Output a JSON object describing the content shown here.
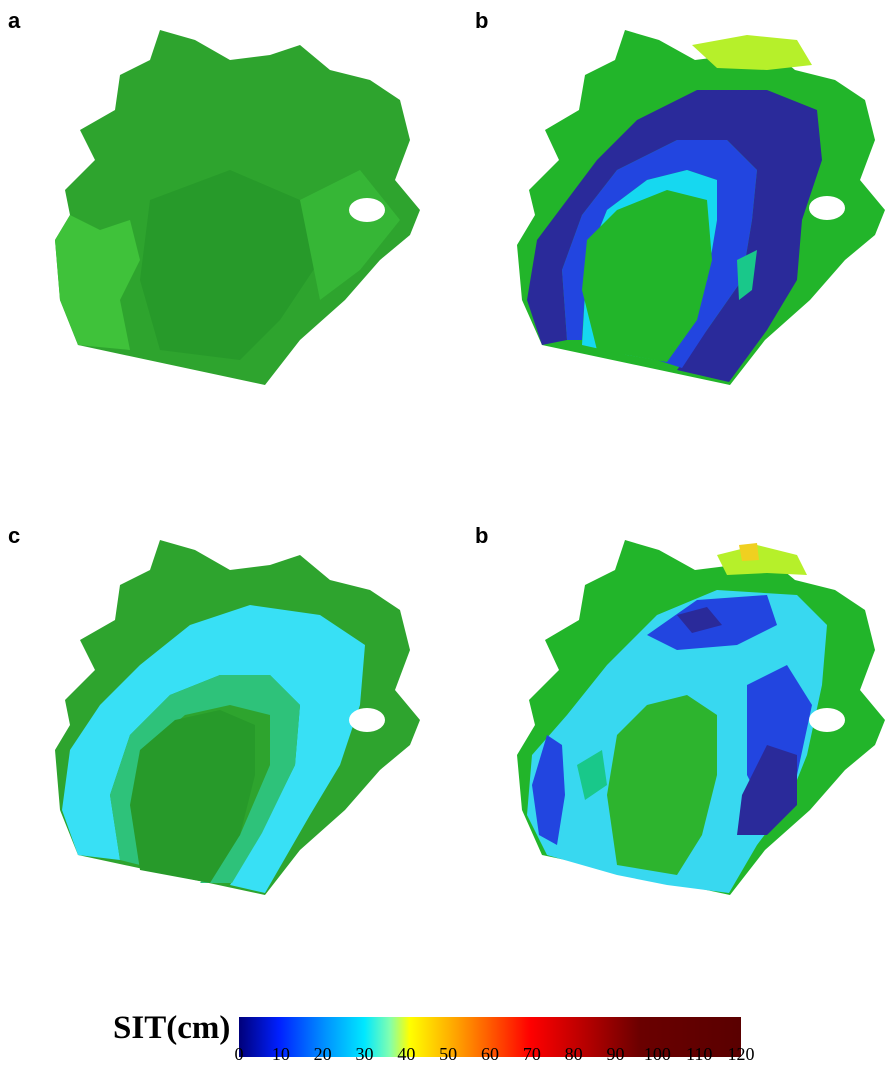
{
  "panels": [
    {
      "label": "a"
    },
    {
      "label": "b"
    },
    {
      "label": "c"
    },
    {
      "label": "b"
    }
  ],
  "colorbar": {
    "title": "SIT(cm)",
    "ticks": [
      "0",
      "10",
      "20",
      "30",
      "40",
      "50",
      "60",
      "70",
      "80",
      "90",
      "100",
      "110",
      "120"
    ],
    "range": [
      0,
      120
    ],
    "colors": [
      "#00007a",
      "#0020ff",
      "#0090ff",
      "#00e8ff",
      "#80ffb0",
      "#ffff00",
      "#ffb000",
      "#ff5a00",
      "#ff0000",
      "#b00000",
      "#6a0000",
      "#5a0000"
    ]
  },
  "palette": {
    "green_dark": "#2e9f2e",
    "green_mid": "#22b52a",
    "green_light": "#3fc83a",
    "navy": "#2a2a9a",
    "blue": "#2245e0",
    "cyan": "#16d8f0",
    "light_cyan": "#38e0f5",
    "teal": "#19c88a",
    "yellow_green": "#b6f02a",
    "yellow": "#f0d020"
  }
}
